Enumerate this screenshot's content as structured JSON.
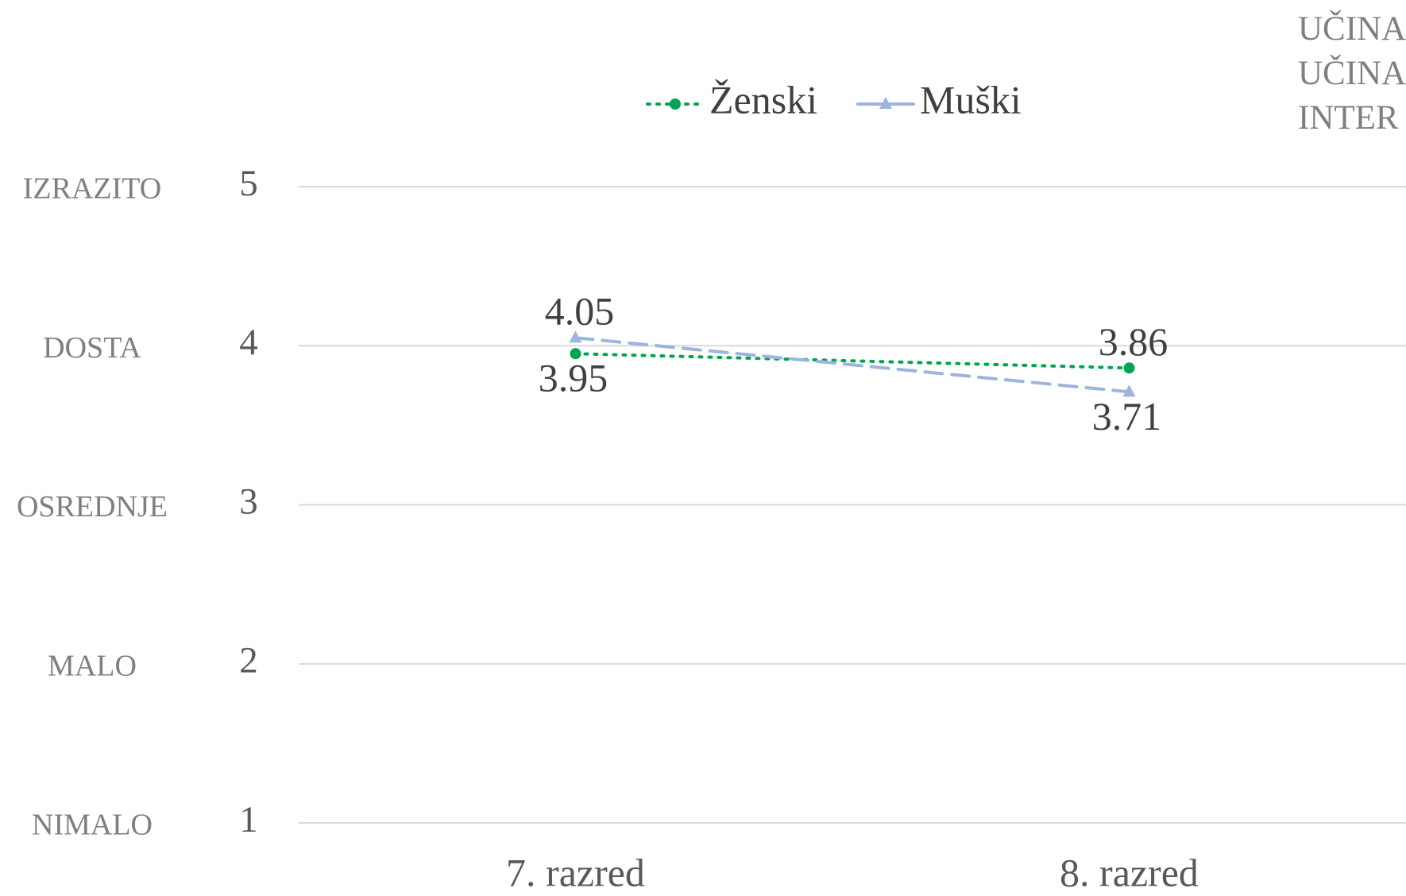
{
  "chart_data": {
    "type": "line",
    "categories": [
      "7. razred",
      "8. razred"
    ],
    "series": [
      {
        "name": "Ženski",
        "color": "#00a550",
        "style": "dotted",
        "marker": "circle",
        "values": [
          3.95,
          3.86
        ]
      },
      {
        "name": "Muški",
        "color": "#9db3e0",
        "style": "dashed",
        "marker": "triangle",
        "values": [
          4.05,
          3.71
        ]
      }
    ],
    "ylim": [
      1,
      5
    ],
    "yticks": [
      1,
      2,
      3,
      4,
      5
    ],
    "ytick_names": [
      "NIMALO",
      "MALO",
      "OSREDNJE",
      "DOSTA",
      "IZRAZITO"
    ],
    "grid": true,
    "legend": "top",
    "annotations": [
      "UČINA",
      "UČINA",
      "INTER"
    ]
  }
}
